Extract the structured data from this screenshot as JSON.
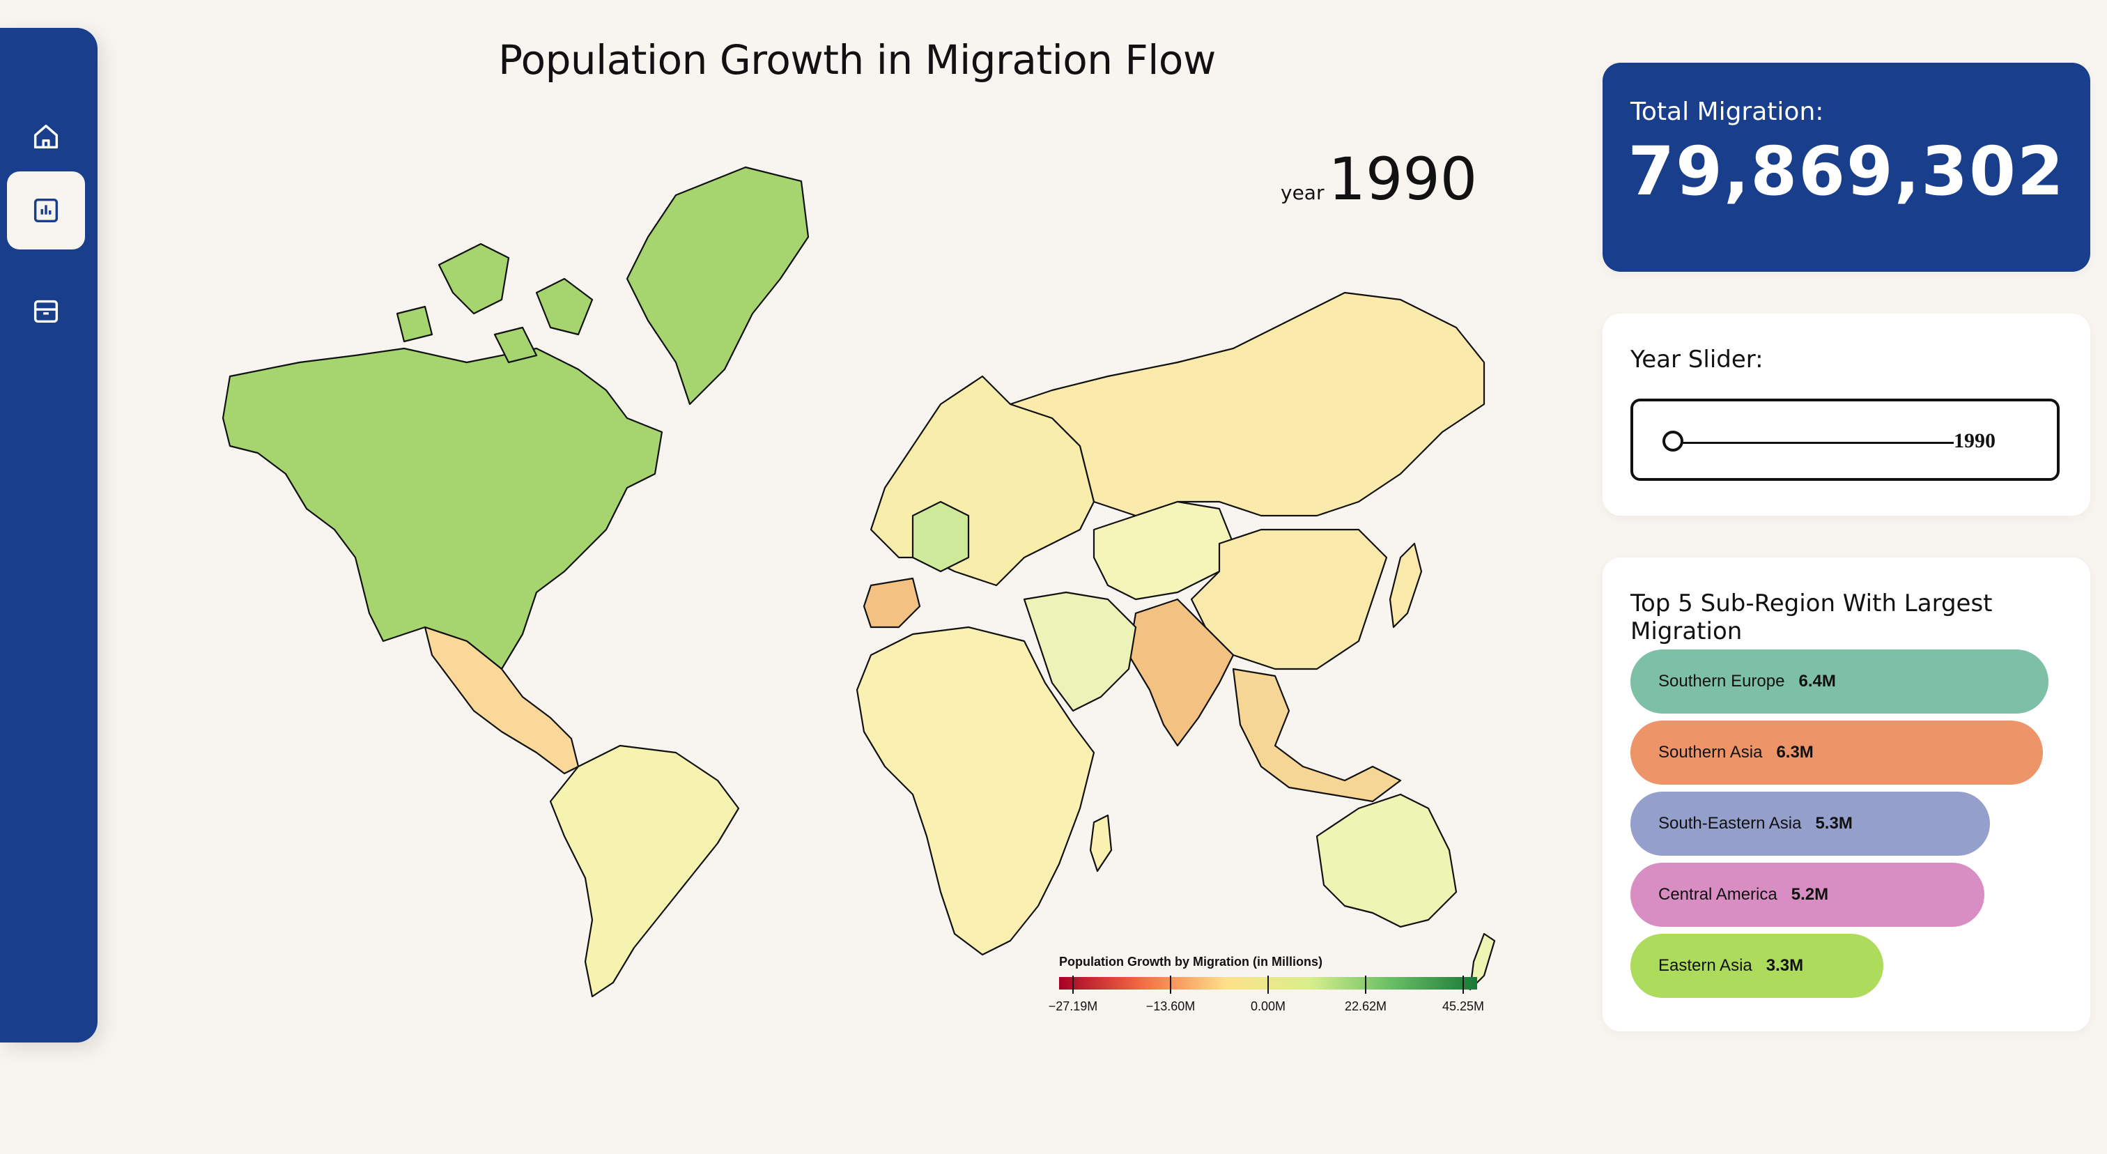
{
  "nav": {
    "items": [
      {
        "icon": "home-icon"
      },
      {
        "icon": "chart-icon",
        "active": true
      },
      {
        "icon": "box-icon"
      }
    ]
  },
  "map": {
    "title": "Population Growth in Migration Flow",
    "year_label": "year",
    "year": "1990",
    "legend": {
      "title": "Population Growth by Migration (in Millions)",
      "ticks": [
        "−27.19M",
        "−13.60M",
        "0.00M",
        "22.62M",
        "45.25M"
      ],
      "colors": [
        "#a50026",
        "#f46d43",
        "#fee08b",
        "#d9ef8b",
        "#66bd63",
        "#1a7837"
      ]
    },
    "regions": [
      {
        "name": "North America",
        "color": "#a6d46f"
      },
      {
        "name": "Greenland",
        "color": "#a6d46f"
      },
      {
        "name": "Mexico",
        "color": "#f9d89a"
      },
      {
        "name": "South America",
        "color": "#f6f3b0"
      },
      {
        "name": "Europe",
        "color": "#f9edab"
      },
      {
        "name": "Germany",
        "color": "#cfe99b"
      },
      {
        "name": "Spain",
        "color": "#f3c283"
      },
      {
        "name": "Russia",
        "color": "#faeaab"
      },
      {
        "name": "Central Asia",
        "color": "#f6f5b9"
      },
      {
        "name": "China",
        "color": "#f9e9ab"
      },
      {
        "name": "South Asia",
        "color": "#f3c283"
      },
      {
        "name": "Middle East",
        "color": "#edf2b8"
      },
      {
        "name": "Africa",
        "color": "#f9f0b2"
      },
      {
        "name": "Southeast Asia",
        "color": "#f6d695"
      },
      {
        "name": "Australia",
        "color": "#eef5b4"
      }
    ]
  },
  "total": {
    "label": "Total Migration:",
    "value": "79,869,302"
  },
  "slider": {
    "label": "Year Slider:",
    "value": "1990",
    "min": 1990,
    "max": 2020,
    "current": 1990
  },
  "top5": {
    "title": "Top 5 Sub-Region With Largest Migration",
    "items": [
      {
        "name": "Southern Europe",
        "value": "6.4M",
        "num": 6.4,
        "color": "#7dc0a6"
      },
      {
        "name": "Southern Asia",
        "value": "6.3M",
        "num": 6.3,
        "color": "#ed9468"
      },
      {
        "name": "South-Eastern Asia",
        "value": "5.3M",
        "num": 5.3,
        "color": "#94a0cb"
      },
      {
        "name": "Central America",
        "value": "5.2M",
        "num": 5.2,
        "color": "#d98ec3"
      },
      {
        "name": "Eastern Asia",
        "value": "3.3M",
        "num": 3.3,
        "color": "#addb5c"
      }
    ]
  }
}
